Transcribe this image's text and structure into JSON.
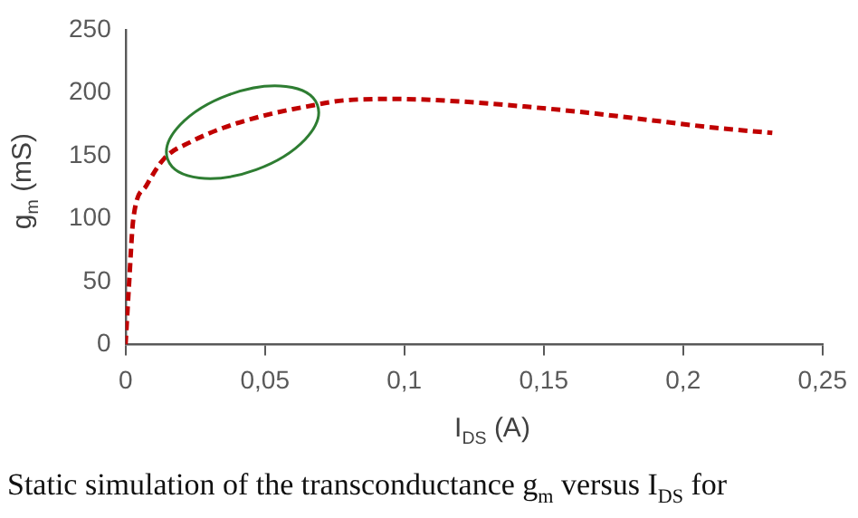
{
  "chart_data": {
    "type": "line",
    "xlabel": "I$_{DS}$ (A)",
    "ylabel": "g$_{m}$ (mS)",
    "x": [
      0,
      0.0012,
      0.0028,
      0.0074,
      0.014,
      0.0235,
      0.035,
      0.05,
      0.065,
      0.079,
      0.097,
      0.12,
      0.143,
      0.166,
      0.189,
      0.212,
      0.232
    ],
    "series": [
      {
        "color": "#c00000",
        "values": [
          0,
          46,
          100,
          126,
          148,
          161,
          172,
          182,
          189,
          194,
          195,
          193,
          189,
          184,
          178,
          172,
          168
        ]
      }
    ],
    "xlim": [
      0,
      0.25
    ],
    "ylim": [
      0,
      250
    ],
    "xticks": [
      0,
      {
        "value": 0.05,
        "label": "0,05"
      },
      {
        "value": 0.1,
        "label": "0,1"
      },
      {
        "value": 0.15,
        "label": "0,15"
      },
      {
        "value": 0.2,
        "label": "0,2"
      },
      {
        "value": 0.25,
        "label": "0,25"
      }
    ],
    "yticks": [
      0,
      50,
      100,
      150,
      200,
      250
    ],
    "grid": false,
    "legend": false,
    "marker": "none",
    "line_style": "dashed",
    "annotations": [
      "Static simulation of the transconductance g$_{m}$ versus I$_{DS}$ for"
    ]
  }
}
